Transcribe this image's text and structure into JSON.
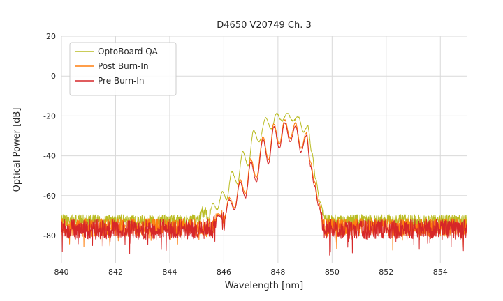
{
  "figure": {
    "background": "#ffffff",
    "grid_color": "#d9d9d9",
    "text_color": "#262626"
  },
  "chart_data": {
    "type": "line",
    "title": "D4650 V20749 Ch. 3",
    "xlabel": "Wavelength [nm]",
    "ylabel": "Optical Power [dB]",
    "xlim": [
      840,
      855
    ],
    "ylim": [
      -94,
      20
    ],
    "xticks": [
      840,
      842,
      844,
      846,
      848,
      850,
      852,
      854
    ],
    "yticks": [
      20,
      0,
      -20,
      -40,
      -60,
      -80
    ],
    "grid": true,
    "legend_position": "upper left",
    "series": [
      {
        "name": "OptoBoard QA",
        "color": "#b9bc22",
        "noise": {
          "floor": -72.5,
          "amp": 3.0,
          "spike_amp": 4,
          "spike_prob": 0.03
        },
        "envelope": [
          [
            845.05,
            -72
          ],
          [
            845.25,
            -68
          ],
          [
            845.45,
            -70
          ],
          [
            845.6,
            -64
          ],
          [
            845.75,
            -67
          ],
          [
            845.95,
            -58
          ],
          [
            846.1,
            -62
          ],
          [
            846.3,
            -48
          ],
          [
            846.5,
            -54
          ],
          [
            846.7,
            -38
          ],
          [
            846.9,
            -45
          ],
          [
            847.1,
            -27.5
          ],
          [
            847.3,
            -33
          ],
          [
            847.55,
            -21
          ],
          [
            847.75,
            -26.5
          ],
          [
            847.95,
            -18.8
          ],
          [
            848.15,
            -22.5
          ],
          [
            848.35,
            -18.6
          ],
          [
            848.55,
            -22.5
          ],
          [
            848.75,
            -20.5
          ],
          [
            848.95,
            -28
          ],
          [
            849.1,
            -25
          ],
          [
            849.25,
            -38
          ],
          [
            849.4,
            -52
          ],
          [
            849.55,
            -63
          ],
          [
            849.75,
            -72.5
          ]
        ]
      },
      {
        "name": "Post Burn-In",
        "color": "#ff7f0e",
        "noise": {
          "floor": -76,
          "amp": 4.5,
          "spike_amp": 8,
          "spike_prob": 0.05
        },
        "envelope": [
          [
            845.55,
            -76
          ],
          [
            845.8,
            -69
          ],
          [
            846.0,
            -72
          ],
          [
            846.2,
            -61
          ],
          [
            846.4,
            -66
          ],
          [
            846.6,
            -52
          ],
          [
            846.8,
            -59
          ],
          [
            847.0,
            -41.5
          ],
          [
            847.2,
            -51
          ],
          [
            847.45,
            -30.5
          ],
          [
            847.65,
            -42
          ],
          [
            847.85,
            -24
          ],
          [
            848.05,
            -34
          ],
          [
            848.25,
            -22
          ],
          [
            848.45,
            -31
          ],
          [
            848.65,
            -23.5
          ],
          [
            848.85,
            -36
          ],
          [
            849.05,
            -28.5
          ],
          [
            849.2,
            -43
          ],
          [
            849.35,
            -53
          ],
          [
            849.5,
            -63
          ],
          [
            849.7,
            -76
          ]
        ]
      },
      {
        "name": "Pre Burn-In",
        "color": "#d62728",
        "noise": {
          "floor": -77,
          "amp": 5.0,
          "spike_amp": 9,
          "spike_prob": 0.06
        },
        "envelope": [
          [
            845.55,
            -77
          ],
          [
            845.8,
            -70
          ],
          [
            846.0,
            -73
          ],
          [
            846.2,
            -62
          ],
          [
            846.4,
            -67
          ],
          [
            846.6,
            -53
          ],
          [
            846.8,
            -61
          ],
          [
            847.0,
            -43
          ],
          [
            847.2,
            -53
          ],
          [
            847.45,
            -32
          ],
          [
            847.65,
            -44
          ],
          [
            847.85,
            -25.5
          ],
          [
            848.05,
            -36
          ],
          [
            848.25,
            -23.5
          ],
          [
            848.45,
            -33
          ],
          [
            848.65,
            -25
          ],
          [
            848.85,
            -38
          ],
          [
            849.05,
            -30
          ],
          [
            849.2,
            -45
          ],
          [
            849.35,
            -55
          ],
          [
            849.5,
            -65
          ],
          [
            849.7,
            -77
          ]
        ]
      }
    ]
  }
}
